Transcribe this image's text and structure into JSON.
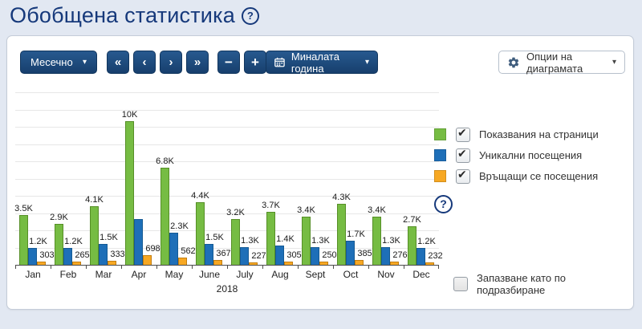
{
  "page": {
    "title": "Обобщена статистика"
  },
  "icons": {
    "help": "?",
    "chevron_down": "▾",
    "nav_first": "«",
    "nav_prev": "‹",
    "nav_next": "›",
    "nav_last": "»"
  },
  "toolbar": {
    "period_select_label": "Месечно",
    "zoom_out_label": "−",
    "zoom_in_label": "+",
    "range_select_label": "Миналата година",
    "chart_options_label": "Опции на диаграмата"
  },
  "colors": {
    "accent_navy": "#16397b",
    "button_blue": "#1b4a7d",
    "series_green": "#76bc43",
    "series_blue": "#1e6fb8",
    "series_orange": "#f7a823"
  },
  "legend": {
    "items": [
      {
        "label": "Показвания на страници",
        "color": "#76bc43",
        "border": "#568f27",
        "checked": true
      },
      {
        "label": "Уникални посещения",
        "color": "#1e6fb8",
        "border": "#155a94",
        "checked": true
      },
      {
        "label": "Връщащи се посещения",
        "color": "#f7a823",
        "border": "#c27d10",
        "checked": true
      }
    ],
    "save_default_label": "Запазване като по подразбиране",
    "save_default_checked": false
  },
  "chart_data": {
    "type": "bar",
    "title": "",
    "x_axis_label": "2018",
    "categories": [
      "Jan",
      "Feb",
      "Mar",
      "Apr",
      "May",
      "June",
      "July",
      "Aug",
      "Sept",
      "Oct",
      "Nov",
      "Dec"
    ],
    "series": [
      {
        "name": "Показвания на страници",
        "color": "#76bc43",
        "border": "#568f27",
        "values": [
          3500,
          2900,
          4100,
          10000,
          6800,
          4400,
          3200,
          3700,
          3400,
          4300,
          3400,
          2700
        ],
        "labels": [
          "3.5K",
          "2.9K",
          "4.1K",
          "10K",
          "6.8K",
          "4.4K",
          "3.2K",
          "3.7K",
          "3.4K",
          "4.3K",
          "3.4K",
          "2.7K"
        ]
      },
      {
        "name": "Уникални посещения",
        "color": "#1e6fb8",
        "border": "#155a94",
        "values": [
          1200,
          1200,
          1500,
          3200,
          2300,
          1500,
          1300,
          1400,
          1300,
          1700,
          1300,
          1200
        ],
        "labels": [
          "1.2K",
          "1.2K",
          "1.5K",
          "",
          "2.3K",
          "1.5K",
          "1.3K",
          "1.4K",
          "1.3K",
          "1.7K",
          "1.3K",
          "1.2K"
        ]
      },
      {
        "name": "Връщащи се посещения",
        "color": "#f7a823",
        "border": "#c27d10",
        "values": [
          303,
          265,
          333,
          698,
          562,
          367,
          227,
          305,
          250,
          385,
          276,
          232
        ],
        "labels": [
          "303",
          "265",
          "333",
          "698",
          "562",
          "367",
          "227",
          "305",
          "250",
          "385",
          "276",
          "232"
        ]
      }
    ],
    "ylim": [
      0,
      11000
    ],
    "grid": true,
    "legend_position": "right"
  }
}
